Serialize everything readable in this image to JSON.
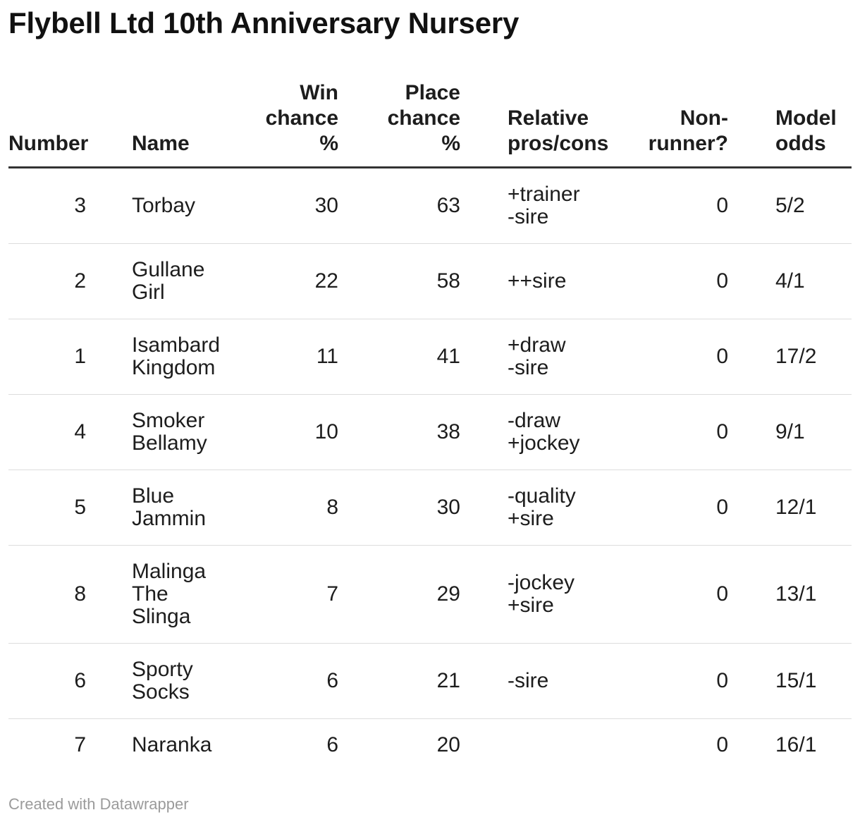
{
  "title": "Flybell Ltd 10th Anniversary Nursery",
  "attribution": "Created with Datawrapper",
  "colors": {
    "text": "#1d1d1d",
    "title": "#111111",
    "header_rule": "#333333",
    "row_rule": "#dddddd",
    "attribution_text": "#9b9b9b"
  },
  "chart_data": {
    "type": "table",
    "title": "Flybell Ltd 10th Anniversary Nursery",
    "columns": [
      {
        "key": "number",
        "label": "Number",
        "align": "right"
      },
      {
        "key": "name",
        "label": "Name",
        "align": "left"
      },
      {
        "key": "win-chance",
        "label": "Win\nchance\n%",
        "align": "right"
      },
      {
        "key": "place-chance",
        "label": "Place\nchance\n%",
        "align": "right"
      },
      {
        "key": "pros-cons",
        "label": "Relative\npros/cons",
        "align": "left"
      },
      {
        "key": "non-runner",
        "label": "Non-\nrunner?",
        "align": "right"
      },
      {
        "key": "model-odds",
        "label": "Model\nodds",
        "align": "left"
      }
    ],
    "rows": [
      {
        "cells": [
          "3",
          "Torbay",
          "30",
          "63",
          "+trainer\n-sire",
          "0",
          "5/2"
        ]
      },
      {
        "cells": [
          "2",
          "Gullane\nGirl",
          "22",
          "58",
          "++sire",
          "0",
          "4/1"
        ]
      },
      {
        "cells": [
          "1",
          "Isambard\nKingdom",
          "11",
          "41",
          "+draw\n-sire",
          "0",
          "17/2"
        ]
      },
      {
        "cells": [
          "4",
          "Smoker\nBellamy",
          "10",
          "38",
          "-draw\n+jockey",
          "0",
          "9/1"
        ]
      },
      {
        "cells": [
          "5",
          "Blue\nJammin",
          "8",
          "30",
          "-quality\n+sire",
          "0",
          "12/1"
        ]
      },
      {
        "cells": [
          "8",
          "Malinga\nThe\nSlinga",
          "7",
          "29",
          "-jockey\n+sire",
          "0",
          "13/1"
        ]
      },
      {
        "cells": [
          "6",
          "Sporty\nSocks",
          "6",
          "21",
          "-sire",
          "0",
          "15/1"
        ]
      },
      {
        "cells": [
          "7",
          "Naranka",
          "6",
          "20",
          "",
          "0",
          "16/1"
        ]
      }
    ]
  }
}
